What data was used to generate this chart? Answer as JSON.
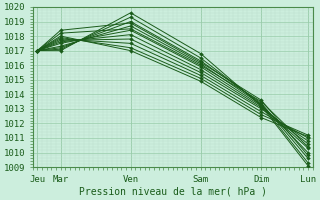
{
  "xlabel": "Pression niveau de la mer( hPa )",
  "xtick_labels": [
    "Jeu",
    "Mar",
    "Ven",
    "Sam",
    "Dim",
    "Lun"
  ],
  "xtick_positions": [
    0,
    0.5,
    2.0,
    3.5,
    4.8,
    5.8
  ],
  "ylim": [
    1009,
    1020
  ],
  "yticks": [
    1009,
    1010,
    1011,
    1012,
    1013,
    1014,
    1015,
    1016,
    1017,
    1018,
    1019,
    1020
  ],
  "bg_color": "#cceedd",
  "grid_color_major": "#99ccaa",
  "grid_color_minor": "#bbddcc",
  "line_color": "#1a5c1a",
  "lines": [
    [
      1017.0,
      1017.0,
      1019.6,
      1016.8,
      1013.2,
      1009.1
    ],
    [
      1017.0,
      1017.1,
      1019.3,
      1016.5,
      1013.3,
      1009.3
    ],
    [
      1017.0,
      1017.2,
      1019.0,
      1016.3,
      1013.4,
      1009.6
    ],
    [
      1017.0,
      1017.3,
      1018.7,
      1016.1,
      1013.3,
      1010.0
    ],
    [
      1017.0,
      1017.5,
      1018.4,
      1015.9,
      1013.2,
      1010.3
    ],
    [
      1017.0,
      1017.6,
      1018.1,
      1015.7,
      1013.1,
      1010.6
    ],
    [
      1017.0,
      1017.7,
      1017.8,
      1015.5,
      1013.0,
      1010.8
    ],
    [
      1017.0,
      1017.8,
      1017.5,
      1015.3,
      1012.8,
      1011.0
    ],
    [
      1017.0,
      1017.9,
      1017.2,
      1015.1,
      1012.6,
      1011.2
    ],
    [
      1017.0,
      1018.0,
      1017.0,
      1014.9,
      1012.4,
      1011.1
    ],
    [
      1017.0,
      1018.2,
      1018.5,
      1016.0,
      1013.5,
      1010.4
    ],
    [
      1017.0,
      1018.4,
      1018.9,
      1016.2,
      1013.6,
      1009.8
    ]
  ],
  "figsize": [
    3.2,
    2.0
  ],
  "dpi": 100
}
